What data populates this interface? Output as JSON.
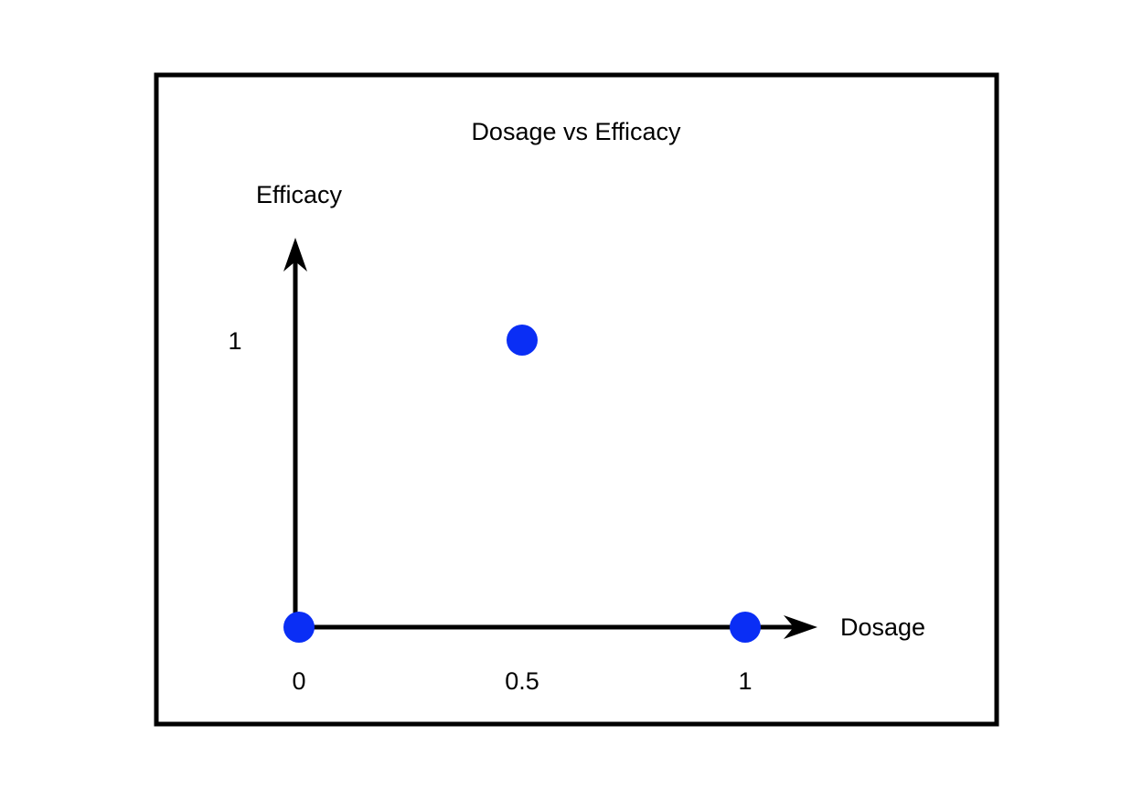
{
  "chart_data": {
    "type": "scatter",
    "title": "Dosage vs Efficacy",
    "xlabel": "Dosage",
    "ylabel": "Efficacy",
    "x_ticks": [
      {
        "value": 0,
        "label": "0"
      },
      {
        "value": 0.5,
        "label": "0.5"
      },
      {
        "value": 1,
        "label": "1"
      }
    ],
    "y_ticks": [
      {
        "value": 1,
        "label": "1"
      }
    ],
    "xlim": [
      0,
      1
    ],
    "ylim": [
      0,
      1
    ],
    "grid": false,
    "series": [
      {
        "points": [
          {
            "x": 0,
            "y": 0
          },
          {
            "x": 0.5,
            "y": 1
          },
          {
            "x": 1,
            "y": 0
          }
        ],
        "color": "#0a2ef5"
      }
    ],
    "axis_color": "#000000",
    "frame_color": "#000000"
  }
}
